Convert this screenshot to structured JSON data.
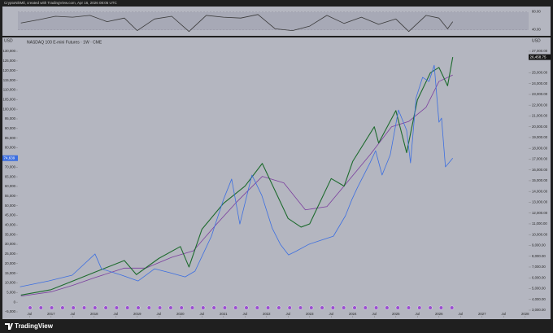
{
  "header": "CryptoNikMil, created with TradingView.com, Apr 16, 2026 08:05 UTC",
  "footer": "TradingView",
  "chart_data": [
    {
      "type": "line",
      "title": "NASDAQ 100 E-mini Futures · 1W · CME",
      "y_label": "USD",
      "y2_label": "USD",
      "xlim": [
        2016.23,
        2028.08
      ],
      "xticks": [
        {
          "value": 2016.5,
          "label": "Jul"
        },
        2017,
        {
          "value": 2017.5,
          "label": "Jul"
        },
        2018,
        {
          "value": 2018.5,
          "label": "Jul"
        },
        2019,
        {
          "value": 2019.5,
          "label": "Jul"
        },
        2020,
        {
          "value": 2020.5,
          "label": "Jul"
        },
        2021,
        {
          "value": 2021.5,
          "label": "Jul"
        },
        2022,
        {
          "value": 2022.5,
          "label": "Jul"
        },
        2023,
        {
          "value": 2023.5,
          "label": "Jul"
        },
        2024,
        {
          "value": 2024.5,
          "label": "Jul"
        },
        2025,
        {
          "value": 2025.5,
          "label": "Jul"
        },
        2026,
        {
          "value": 2026.5,
          "label": "Jul"
        },
        2027,
        {
          "value": 2027.5,
          "label": "Jul"
        },
        2028
      ],
      "ylim": [
        -7100,
        133400
      ],
      "yticks": [
        {
          "value": 130000,
          "label": "130,000"
        },
        {
          "value": 125000,
          "label": "125,000"
        },
        {
          "value": 120000,
          "label": "120,000"
        },
        {
          "value": 115000,
          "label": "115,000"
        },
        {
          "value": 110000,
          "label": "110,000"
        },
        {
          "value": 105000,
          "label": "105,000"
        },
        {
          "value": 100000,
          "label": "100,000"
        },
        {
          "value": 95000,
          "label": "95,000"
        },
        {
          "value": 90000,
          "label": "90,000"
        },
        {
          "value": 85000,
          "label": "85,000"
        },
        {
          "value": 80000,
          "label": "80,000"
        },
        {
          "value": 75000,
          "label": "75,000"
        },
        {
          "value": 70000,
          "label": "70,000"
        },
        {
          "value": 65000,
          "label": "65,000"
        },
        {
          "value": 60000,
          "label": "60,000"
        },
        {
          "value": 55000,
          "label": "55,000"
        },
        {
          "value": 50000,
          "label": "50,000"
        },
        {
          "value": 45000,
          "label": "45,000"
        },
        {
          "value": 40000,
          "label": "40,000"
        },
        {
          "value": 35000,
          "label": "35,000"
        },
        {
          "value": 30000,
          "label": "30,000"
        },
        {
          "value": 25000,
          "label": "25,000"
        },
        {
          "value": 20000,
          "label": "20,000"
        },
        {
          "value": 15000,
          "label": "15,000"
        },
        {
          "value": 10000,
          "label": "10,000"
        },
        {
          "value": 5000,
          "label": "5,000"
        },
        0,
        {
          "value": -5000,
          "label": "−5,000"
        }
      ],
      "y2lim": [
        2470,
        27600
      ],
      "y2ticks": [
        {
          "value": 27000,
          "label": "27,000.00"
        },
        {
          "value": 25000,
          "label": "25,000.00"
        },
        {
          "value": 24000,
          "label": "24,000.00"
        },
        {
          "value": 23000,
          "label": "23,000.00"
        },
        {
          "value": 22000,
          "label": "22,000.00"
        },
        {
          "value": 21000,
          "label": "21,000.00"
        },
        {
          "value": 20000,
          "label": "20,000.00"
        },
        {
          "value": 19000,
          "label": "19,000.00"
        },
        {
          "value": 18000,
          "label": "18,000.00"
        },
        {
          "value": 17000,
          "label": "17,000.00"
        },
        {
          "value": 16000,
          "label": "16,000.00"
        },
        {
          "value": 15000,
          "label": "15,000.00"
        },
        {
          "value": 14000,
          "label": "14,000.00"
        },
        {
          "value": 13000,
          "label": "13,000.00"
        },
        {
          "value": 12000,
          "label": "12,000.00"
        },
        {
          "value": 11000,
          "label": "11,000.00"
        },
        {
          "value": 10000,
          "label": "10,000.00"
        },
        {
          "value": 9000,
          "label": "9,000.00"
        },
        {
          "value": 8000,
          "label": "8,000.00"
        },
        {
          "value": 7000,
          "label": "7,000.00"
        },
        {
          "value": 6000,
          "label": "6,000.00"
        },
        {
          "value": 5000,
          "label": "5,000.00"
        },
        {
          "value": 4000,
          "label": "4,000.00"
        },
        {
          "value": 3000,
          "label": "3,000.00"
        }
      ],
      "series": [
        {
          "color": "#7b3f9e",
          "axis": "y2",
          "x": [
            2016.3,
            2017.0,
            2017.5,
            2018.0,
            2018.7,
            2019.2,
            2019.8,
            2020.3,
            2020.8,
            2021.3,
            2021.9,
            2022.4,
            2022.9,
            2023.4,
            2023.9,
            2024.4,
            2024.9,
            2025.3,
            2025.7,
            2026.0,
            2026.32
          ],
          "values": [
            4300,
            4700,
            5300,
            6000,
            6900,
            6900,
            7900,
            8500,
            10800,
            13000,
            15400,
            14800,
            12300,
            12600,
            15000,
            17400,
            20000,
            20500,
            21800,
            24200,
            24800
          ]
        },
        {
          "color": "#1e6b2e",
          "axis": "y2",
          "x": [
            2016.3,
            2017.0,
            2017.5,
            2018.0,
            2018.7,
            2018.98,
            2019.5,
            2020.0,
            2020.2,
            2020.5,
            2021.0,
            2021.5,
            2021.9,
            2022.5,
            2022.8,
            2023.0,
            2023.5,
            2023.8,
            2024.0,
            2024.5,
            2024.6,
            2025.0,
            2025.25,
            2025.5,
            2025.8,
            2026.0,
            2026.2,
            2026.32
          ],
          "values": [
            4400,
            4900,
            5700,
            6500,
            7600,
            6300,
            7800,
            8900,
            7000,
            10500,
            12900,
            14500,
            16600,
            11500,
            10700,
            11000,
            15200,
            14500,
            16800,
            20000,
            18500,
            21500,
            17600,
            22500,
            25000,
            25500,
            23800,
            26458.75
          ]
        },
        {
          "color": "#3d6fe0",
          "axis": "y",
          "x": [
            2016.28,
            2016.94,
            2017.49,
            2018.02,
            2018.17,
            2018.64,
            2019.02,
            2019.4,
            2019.77,
            2020.11,
            2020.34,
            2020.72,
            2021.0,
            2021.19,
            2021.38,
            2021.66,
            2021.89,
            2022.13,
            2022.32,
            2022.51,
            2022.7,
            2022.98,
            2023.26,
            2023.55,
            2023.83,
            2023.98,
            2024.11,
            2024.4,
            2024.53,
            2024.68,
            2024.87,
            2025.06,
            2025.25,
            2025.34,
            2025.47,
            2025.62,
            2025.77,
            2025.89,
            2026.0,
            2026.06,
            2026.15,
            2026.23,
            2026.32
          ],
          "values": [
            8000,
            11000,
            14000,
            25000,
            17300,
            14000,
            11000,
            17300,
            15200,
            13100,
            16100,
            34200,
            53200,
            63800,
            40500,
            65900,
            55300,
            38400,
            30000,
            24500,
            26600,
            30000,
            32100,
            34200,
            44800,
            53200,
            59500,
            72200,
            78500,
            65900,
            76400,
            99600,
            89100,
            72200,
            106000,
            116500,
            114400,
            122800,
            93300,
            95400,
            70100,
            72200,
            74639
          ]
        }
      ],
      "price_tags": [
        {
          "value": 74639,
          "label": "74,639",
          "axis": "y",
          "color": "#3d6fe0"
        },
        {
          "value": 26458.75,
          "label": "26,458.75",
          "axis": "y2",
          "color": "#151515"
        }
      ]
    },
    {
      "type": "line",
      "xlim": [
        2016.23,
        2028.08
      ],
      "ylim": [
        30,
        90
      ],
      "yticks": [
        {
          "value": 80,
          "label": "80.00"
        },
        {
          "value": 40,
          "label": "40.00"
        }
      ],
      "series": [
        {
          "color": "#3a3a3a",
          "x": [
            2016.3,
            2016.7,
            2017.1,
            2017.5,
            2017.9,
            2018.3,
            2018.7,
            2019.0,
            2019.4,
            2019.8,
            2020.2,
            2020.6,
            2021.0,
            2021.4,
            2021.8,
            2022.2,
            2022.6,
            2023.0,
            2023.4,
            2023.8,
            2024.2,
            2024.6,
            2025.0,
            2025.3,
            2025.7,
            2026.0,
            2026.2,
            2026.32
          ],
          "values": [
            55,
            62,
            70,
            68,
            72,
            58,
            66,
            38,
            64,
            70,
            36,
            72,
            68,
            66,
            74,
            42,
            38,
            48,
            72,
            54,
            68,
            52,
            64,
            36,
            72,
            66,
            42,
            58
          ]
        }
      ]
    }
  ]
}
